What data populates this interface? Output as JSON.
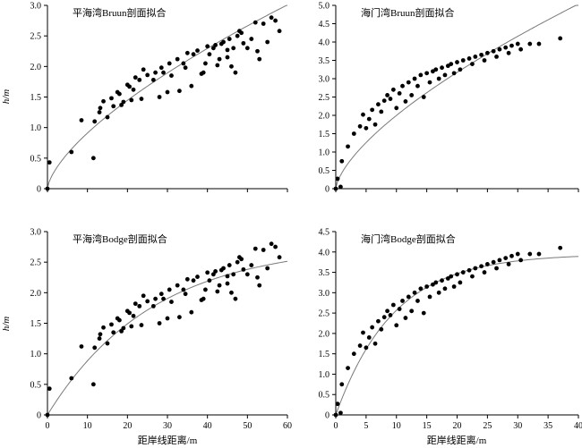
{
  "figure": {
    "xlabel": "距岸线距离/m",
    "ylabel": "h/m"
  },
  "colors": {
    "points": "#000000",
    "curve": "#7a7a7a",
    "axis": "#000000"
  },
  "chart_data": [
    {
      "type": "scatter",
      "title": "平海湾Bruun剖面拟合",
      "xlabel": "",
      "ylabel": "h/m",
      "xlim": [
        0,
        60
      ],
      "ylim": [
        0,
        3
      ],
      "xticks": [
        0,
        10,
        20,
        30,
        40,
        50,
        60
      ],
      "yticks": [
        0,
        0.5,
        1.0,
        1.5,
        2.0,
        2.5,
        3.0
      ],
      "ytick_labels": [
        "0",
        "0.5",
        "1.0",
        "1.5",
        "2.0",
        "2.5",
        "3.0"
      ],
      "show_xtick_labels": false,
      "fit": {
        "model": "bruun",
        "A": 0.196,
        "m": 0.667
      },
      "points": [
        [
          0.0,
          0.0
        ],
        [
          0.5,
          0.43
        ],
        [
          6.0,
          0.6
        ],
        [
          8.5,
          1.12
        ],
        [
          11.5,
          0.5
        ],
        [
          11.8,
          1.1
        ],
        [
          13.0,
          1.25
        ],
        [
          13.2,
          1.32
        ],
        [
          14.0,
          1.43
        ],
        [
          15.0,
          1.17
        ],
        [
          16.0,
          1.48
        ],
        [
          16.5,
          1.35
        ],
        [
          17.5,
          1.58
        ],
        [
          18.0,
          1.55
        ],
        [
          18.5,
          1.37
        ],
        [
          19.0,
          1.42
        ],
        [
          20.0,
          1.7
        ],
        [
          20.5,
          1.67
        ],
        [
          21.0,
          1.45
        ],
        [
          21.5,
          1.62
        ],
        [
          22.0,
          1.82
        ],
        [
          23.0,
          1.78
        ],
        [
          23.5,
          1.47
        ],
        [
          24.0,
          1.95
        ],
        [
          25.0,
          1.86
        ],
        [
          26.5,
          1.78
        ],
        [
          27.0,
          1.9
        ],
        [
          28.0,
          1.5
        ],
        [
          28.5,
          1.98
        ],
        [
          29.0,
          1.9
        ],
        [
          30.0,
          1.58
        ],
        [
          30.5,
          2.05
        ],
        [
          31.0,
          1.85
        ],
        [
          32.5,
          2.12
        ],
        [
          33.0,
          1.6
        ],
        [
          34.0,
          2.05
        ],
        [
          34.5,
          1.98
        ],
        [
          35.0,
          2.22
        ],
        [
          36.0,
          1.68
        ],
        [
          36.5,
          2.2
        ],
        [
          37.5,
          2.26
        ],
        [
          38.5,
          1.88
        ],
        [
          39.0,
          1.9
        ],
        [
          39.5,
          2.05
        ],
        [
          40.0,
          2.33
        ],
        [
          40.5,
          2.2
        ],
        [
          41.5,
          2.3
        ],
        [
          42.0,
          2.35
        ],
        [
          42.5,
          2.02
        ],
        [
          43.0,
          2.12
        ],
        [
          43.5,
          2.37
        ],
        [
          44.0,
          2.4
        ],
        [
          45.0,
          2.27
        ],
        [
          45.0,
          2.15
        ],
        [
          45.5,
          2.45
        ],
        [
          46.0,
          2.0
        ],
        [
          46.5,
          2.3
        ],
        [
          47.0,
          1.9
        ],
        [
          47.5,
          2.5
        ],
        [
          48.0,
          2.58
        ],
        [
          48.5,
          2.55
        ],
        [
          49.0,
          2.38
        ],
        [
          50.0,
          2.3
        ],
        [
          51.0,
          2.45
        ],
        [
          52.0,
          2.72
        ],
        [
          52.5,
          2.25
        ],
        [
          53.0,
          2.12
        ],
        [
          54.0,
          2.7
        ],
        [
          55.0,
          2.4
        ],
        [
          56.0,
          2.8
        ],
        [
          57.0,
          2.75
        ],
        [
          58.0,
          2.58
        ]
      ]
    },
    {
      "type": "scatter",
      "title": "海门湾Bruun剖面拟合",
      "xlabel": "",
      "ylabel": "",
      "xlim": [
        0,
        40
      ],
      "ylim": [
        0,
        5
      ],
      "xticks": [
        0,
        5,
        10,
        15,
        20,
        25,
        30,
        35,
        40
      ],
      "yticks": [
        0,
        0.5,
        1.0,
        1.5,
        2.0,
        2.5,
        3.0,
        3.5,
        4.0,
        4.5,
        5.0
      ],
      "ytick_labels": [
        "0",
        "0.5",
        "1.0",
        "1.5",
        "2.0",
        "2.5",
        "3.0",
        "3.5",
        "4.0",
        "4.5",
        "5.0"
      ],
      "show_xtick_labels": false,
      "fit": {
        "model": "bruun",
        "A": 0.43,
        "m": 0.667
      },
      "points": [
        [
          0.0,
          0.0
        ],
        [
          0.3,
          0.27
        ],
        [
          0.8,
          0.05
        ],
        [
          1.0,
          0.75
        ],
        [
          2.0,
          1.15
        ],
        [
          3.0,
          1.5
        ],
        [
          4.0,
          1.7
        ],
        [
          4.5,
          2.02
        ],
        [
          5.0,
          1.65
        ],
        [
          5.5,
          1.9
        ],
        [
          6.0,
          2.15
        ],
        [
          6.5,
          1.75
        ],
        [
          7.0,
          2.3
        ],
        [
          7.5,
          2.1
        ],
        [
          8.0,
          2.4
        ],
        [
          8.5,
          2.55
        ],
        [
          9.0,
          2.45
        ],
        [
          9.5,
          2.7
        ],
        [
          10.0,
          2.2
        ],
        [
          10.5,
          2.6
        ],
        [
          11.0,
          2.8
        ],
        [
          11.5,
          2.38
        ],
        [
          12.0,
          2.9
        ],
        [
          12.5,
          2.55
        ],
        [
          13.0,
          3.0
        ],
        [
          13.5,
          2.8
        ],
        [
          14.0,
          3.1
        ],
        [
          14.5,
          2.5
        ],
        [
          15.0,
          3.15
        ],
        [
          15.5,
          2.9
        ],
        [
          16.0,
          3.2
        ],
        [
          16.5,
          3.25
        ],
        [
          17.0,
          3.0
        ],
        [
          17.5,
          3.3
        ],
        [
          18.0,
          3.1
        ],
        [
          18.5,
          3.35
        ],
        [
          19.0,
          3.4
        ],
        [
          19.5,
          3.15
        ],
        [
          20.0,
          3.45
        ],
        [
          20.5,
          3.25
        ],
        [
          21.0,
          3.5
        ],
        [
          22.0,
          3.55
        ],
        [
          22.5,
          3.4
        ],
        [
          23.0,
          3.6
        ],
        [
          24.0,
          3.65
        ],
        [
          24.5,
          3.5
        ],
        [
          25.0,
          3.7
        ],
        [
          26.0,
          3.75
        ],
        [
          26.5,
          3.6
        ],
        [
          27.0,
          3.8
        ],
        [
          28.0,
          3.85
        ],
        [
          28.5,
          3.7
        ],
        [
          29.0,
          3.9
        ],
        [
          30.0,
          3.95
        ],
        [
          30.5,
          3.8
        ],
        [
          32.0,
          3.95
        ],
        [
          33.5,
          3.95
        ],
        [
          37.0,
          4.1
        ]
      ]
    },
    {
      "type": "scatter",
      "title": "平海湾Bodge剖面拟合",
      "xlabel": "距岸线距离/m",
      "ylabel": "h/m",
      "xlim": [
        0,
        60
      ],
      "ylim": [
        0,
        3
      ],
      "xticks": [
        0,
        10,
        20,
        30,
        40,
        50,
        60
      ],
      "yticks": [
        0,
        0.5,
        1.0,
        1.5,
        2.0,
        2.5,
        3.0
      ],
      "ytick_labels": [
        "0",
        "0.5",
        "1.0",
        "1.5",
        "2.0",
        "2.5",
        "3.0"
      ],
      "show_xtick_labels": true,
      "fit": {
        "model": "bodge",
        "h0": 2.8,
        "k": 0.038
      },
      "points": [
        [
          0.0,
          0.0
        ],
        [
          0.5,
          0.43
        ],
        [
          6.0,
          0.6
        ],
        [
          8.5,
          1.12
        ],
        [
          11.5,
          0.5
        ],
        [
          11.8,
          1.1
        ],
        [
          13.0,
          1.25
        ],
        [
          13.2,
          1.32
        ],
        [
          14.0,
          1.43
        ],
        [
          15.0,
          1.17
        ],
        [
          16.0,
          1.48
        ],
        [
          16.5,
          1.35
        ],
        [
          17.5,
          1.58
        ],
        [
          18.0,
          1.55
        ],
        [
          18.5,
          1.37
        ],
        [
          19.0,
          1.42
        ],
        [
          20.0,
          1.7
        ],
        [
          20.5,
          1.67
        ],
        [
          21.0,
          1.45
        ],
        [
          21.5,
          1.62
        ],
        [
          22.0,
          1.82
        ],
        [
          23.0,
          1.78
        ],
        [
          23.5,
          1.47
        ],
        [
          24.0,
          1.95
        ],
        [
          25.0,
          1.86
        ],
        [
          26.5,
          1.78
        ],
        [
          27.0,
          1.9
        ],
        [
          28.0,
          1.5
        ],
        [
          28.5,
          1.98
        ],
        [
          29.0,
          1.9
        ],
        [
          30.0,
          1.58
        ],
        [
          30.5,
          2.05
        ],
        [
          31.0,
          1.85
        ],
        [
          32.5,
          2.12
        ],
        [
          33.0,
          1.6
        ],
        [
          34.0,
          2.05
        ],
        [
          34.5,
          1.98
        ],
        [
          35.0,
          2.22
        ],
        [
          36.0,
          1.68
        ],
        [
          36.5,
          2.2
        ],
        [
          37.5,
          2.26
        ],
        [
          38.5,
          1.88
        ],
        [
          39.0,
          1.9
        ],
        [
          39.5,
          2.05
        ],
        [
          40.0,
          2.33
        ],
        [
          40.5,
          2.2
        ],
        [
          41.5,
          2.3
        ],
        [
          42.0,
          2.35
        ],
        [
          42.5,
          2.02
        ],
        [
          43.0,
          2.12
        ],
        [
          43.5,
          2.37
        ],
        [
          44.0,
          2.4
        ],
        [
          45.0,
          2.27
        ],
        [
          45.0,
          2.15
        ],
        [
          45.5,
          2.45
        ],
        [
          46.0,
          2.0
        ],
        [
          46.5,
          2.3
        ],
        [
          47.0,
          1.9
        ],
        [
          47.5,
          2.5
        ],
        [
          48.0,
          2.58
        ],
        [
          48.5,
          2.55
        ],
        [
          49.0,
          2.38
        ],
        [
          50.0,
          2.3
        ],
        [
          51.0,
          2.45
        ],
        [
          52.0,
          2.72
        ],
        [
          52.5,
          2.25
        ],
        [
          53.0,
          2.12
        ],
        [
          54.0,
          2.7
        ],
        [
          55.0,
          2.4
        ],
        [
          56.0,
          2.8
        ],
        [
          57.0,
          2.75
        ],
        [
          58.0,
          2.58
        ]
      ]
    },
    {
      "type": "scatter",
      "title": "海门湾Bodge剖面拟合",
      "xlabel": "距岸线距离/m",
      "ylabel": "",
      "xlim": [
        0,
        40
      ],
      "ylim": [
        0,
        4.5
      ],
      "xticks": [
        0,
        5,
        10,
        15,
        20,
        25,
        30,
        35,
        40
      ],
      "yticks": [
        0,
        0.5,
        1.0,
        1.5,
        2.0,
        2.5,
        3.0,
        3.5,
        4.0,
        4.5
      ],
      "ytick_labels": [
        "0",
        "0.5",
        "1.0",
        "1.5",
        "2.0",
        "2.5",
        "3.0",
        "3.5",
        "4.0",
        "4.5"
      ],
      "show_xtick_labels": true,
      "fit": {
        "model": "bodge",
        "h0": 3.95,
        "k": 0.105
      },
      "points": [
        [
          0.0,
          0.0
        ],
        [
          0.3,
          0.27
        ],
        [
          0.8,
          0.05
        ],
        [
          1.0,
          0.75
        ],
        [
          2.0,
          1.15
        ],
        [
          3.0,
          1.5
        ],
        [
          4.0,
          1.7
        ],
        [
          4.5,
          2.02
        ],
        [
          5.0,
          1.65
        ],
        [
          5.5,
          1.9
        ],
        [
          6.0,
          2.15
        ],
        [
          6.5,
          1.75
        ],
        [
          7.0,
          2.3
        ],
        [
          7.5,
          2.1
        ],
        [
          8.0,
          2.4
        ],
        [
          8.5,
          2.55
        ],
        [
          9.0,
          2.45
        ],
        [
          9.5,
          2.7
        ],
        [
          10.0,
          2.2
        ],
        [
          10.5,
          2.6
        ],
        [
          11.0,
          2.8
        ],
        [
          11.5,
          2.38
        ],
        [
          12.0,
          2.9
        ],
        [
          12.5,
          2.55
        ],
        [
          13.0,
          3.0
        ],
        [
          13.5,
          2.8
        ],
        [
          14.0,
          3.1
        ],
        [
          14.5,
          2.5
        ],
        [
          15.0,
          3.15
        ],
        [
          15.5,
          2.9
        ],
        [
          16.0,
          3.2
        ],
        [
          16.5,
          3.25
        ],
        [
          17.0,
          3.0
        ],
        [
          17.5,
          3.3
        ],
        [
          18.0,
          3.1
        ],
        [
          18.5,
          3.35
        ],
        [
          19.0,
          3.4
        ],
        [
          19.5,
          3.15
        ],
        [
          20.0,
          3.45
        ],
        [
          20.5,
          3.25
        ],
        [
          21.0,
          3.5
        ],
        [
          22.0,
          3.55
        ],
        [
          22.5,
          3.4
        ],
        [
          23.0,
          3.6
        ],
        [
          24.0,
          3.65
        ],
        [
          24.5,
          3.5
        ],
        [
          25.0,
          3.7
        ],
        [
          26.0,
          3.75
        ],
        [
          26.5,
          3.6
        ],
        [
          27.0,
          3.8
        ],
        [
          28.0,
          3.85
        ],
        [
          28.5,
          3.7
        ],
        [
          29.0,
          3.9
        ],
        [
          30.0,
          3.95
        ],
        [
          30.5,
          3.8
        ],
        [
          32.0,
          3.95
        ],
        [
          33.5,
          3.95
        ],
        [
          37.0,
          4.1
        ]
      ]
    }
  ]
}
